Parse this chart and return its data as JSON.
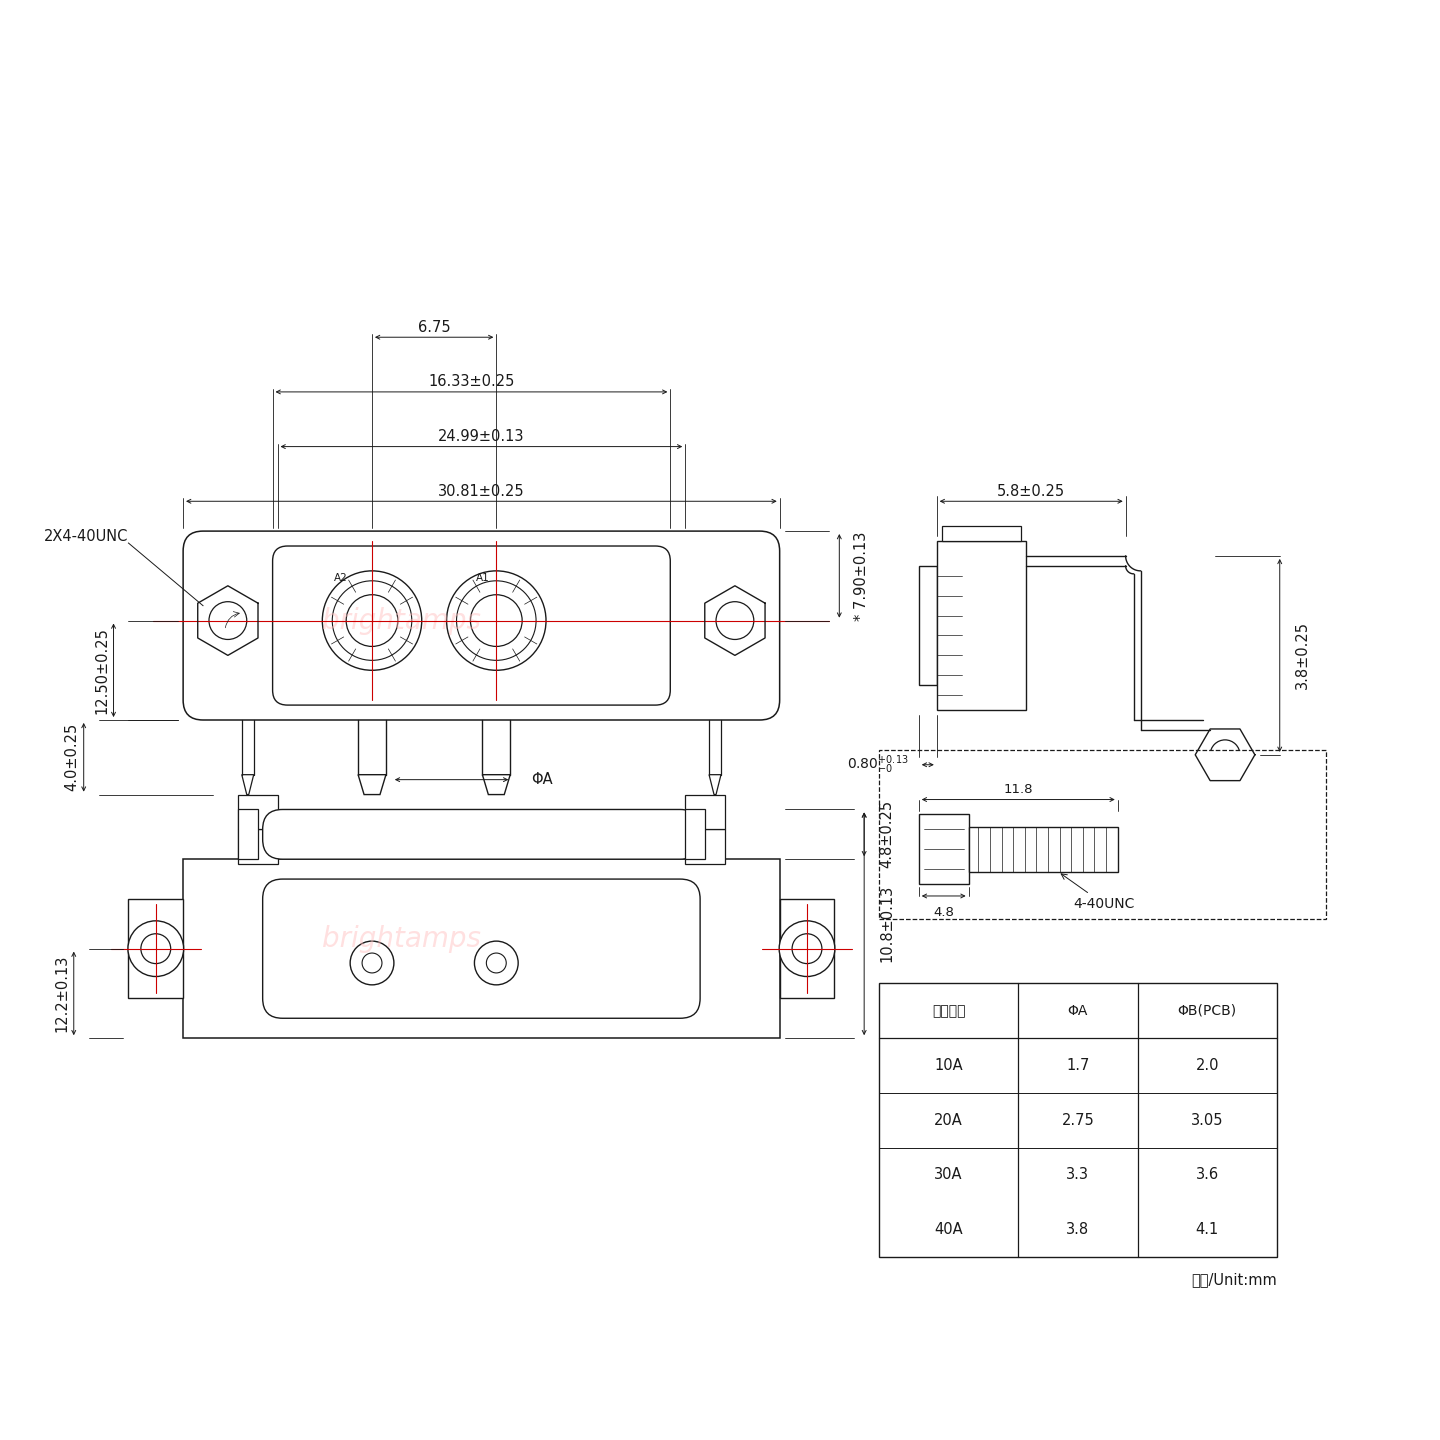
{
  "bg_color": "#ffffff",
  "line_color": "#1a1a1a",
  "red_color": "#cc0000",
  "wm_color": "#ffbbbb",
  "dims": {
    "w_total": "30.81±0.25",
    "w_mid": "24.99±0.13",
    "w_inner": "16.33±0.25",
    "w_ctr": "6.75",
    "h_left": "12.50±0.25",
    "h_right": "7.90±0.13",
    "pin_len": "4.0±0.25",
    "sv_w": "5.8±0.25",
    "sv_h": "3.8±0.25",
    "sv_off": "0.80",
    "sv_off_tol": "+0.13\n  -0",
    "bv_tot": "10.8±0.13",
    "bv_lft": "12.2±0.13",
    "bv_top": "4.8±0.25",
    "screw_note": "2X4-40UNC",
    "phi_a": "ΦA",
    "sc_dia": "4.8",
    "sc_len": "11.8",
    "sc_thd": "4-40UNC"
  },
  "tbl_hdrs": [
    "额定电流",
    "ΦA",
    "ΦB(PCB)"
  ],
  "tbl_rows": [
    [
      "10A",
      "1.7",
      "2.0"
    ],
    [
      "20A",
      "2.75",
      "3.05"
    ],
    [
      "30A",
      "3.3",
      "3.6"
    ],
    [
      "40A",
      "3.8",
      "4.1"
    ]
  ],
  "tbl_unit": "单位/Unit:mm"
}
